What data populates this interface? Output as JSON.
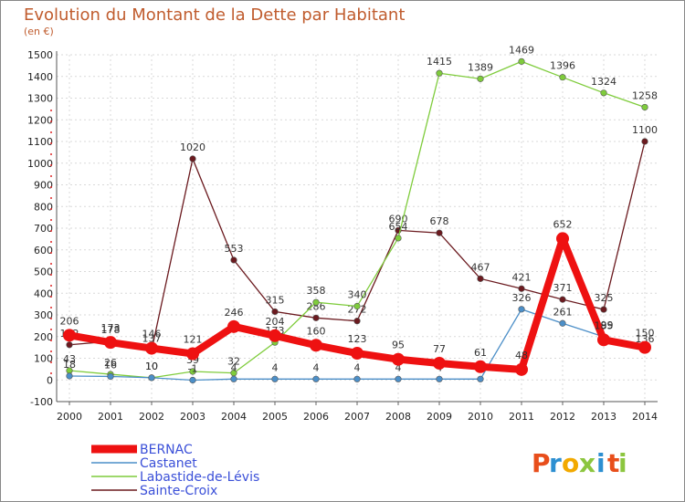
{
  "header": {
    "title": "Evolution du Montant de la Dette par Habitant",
    "subtitle": "(en €)"
  },
  "chart_data": {
    "type": "line",
    "title": "Evolution du Montant de la Dette par Habitant",
    "subtitle": "(en €)",
    "x": [
      "2000",
      "2001",
      "2002",
      "2003",
      "2004",
      "2005",
      "2006",
      "2007",
      "2008",
      "2009",
      "2010",
      "2011",
      "2012",
      "2013",
      "2014"
    ],
    "ylim": [
      -100,
      1500
    ],
    "yticks": [
      -100,
      0,
      100,
      200,
      300,
      400,
      500,
      600,
      700,
      800,
      900,
      1000,
      1100,
      1200,
      1300,
      1400,
      1500
    ],
    "grid": true,
    "legend_position": "bottom-left",
    "series": [
      {
        "name": "Sainte-Croix",
        "color": "#6b1a1f",
        "thick": false,
        "values": [
          162,
          178,
          137,
          1020,
          553,
          315,
          286,
          272,
          690,
          678,
          467,
          421,
          371,
          325,
          1100
        ]
      },
      {
        "name": "Labastide-de-Lévis",
        "color": "#7fcc3c",
        "thick": false,
        "values": [
          43,
          26,
          10,
          39,
          32,
          173,
          358,
          340,
          654,
          1415,
          1389,
          1469,
          1396,
          1324,
          1258
        ]
      },
      {
        "name": "Castanet",
        "color": "#4c8fc8",
        "thick": false,
        "values": [
          18,
          16,
          10,
          -1,
          4,
          4,
          4,
          4,
          4,
          4,
          4,
          326,
          261,
          199,
          136
        ]
      },
      {
        "name": "BERNAC",
        "color": "#ee1111",
        "thick": true,
        "values": [
          206,
          173,
          146,
          121,
          246,
          204,
          160,
          123,
          95,
          77,
          61,
          48,
          652,
          185,
          150
        ]
      }
    ]
  },
  "legend": {
    "items": [
      {
        "label": "BERNAC",
        "color": "#ee1111"
      },
      {
        "label": "Castanet",
        "color": "#4c8fc8"
      },
      {
        "label": "Labastide-de-Lévis",
        "color": "#7fcc3c"
      },
      {
        "label": "Sainte-Croix",
        "color": "#6b1a1f"
      }
    ]
  },
  "logo": {
    "text": "Proxiti",
    "letters": [
      {
        "ch": "P",
        "color": "#e84e1b"
      },
      {
        "ch": "r",
        "color": "#2c8fd1"
      },
      {
        "ch": "o",
        "color": "#f2a900"
      },
      {
        "ch": "x",
        "color": "#8cc63f"
      },
      {
        "ch": "i",
        "color": "#2c8fd1"
      },
      {
        "ch": "t",
        "color": "#e84e1b"
      },
      {
        "ch": "i",
        "color": "#8cc63f"
      }
    ]
  }
}
